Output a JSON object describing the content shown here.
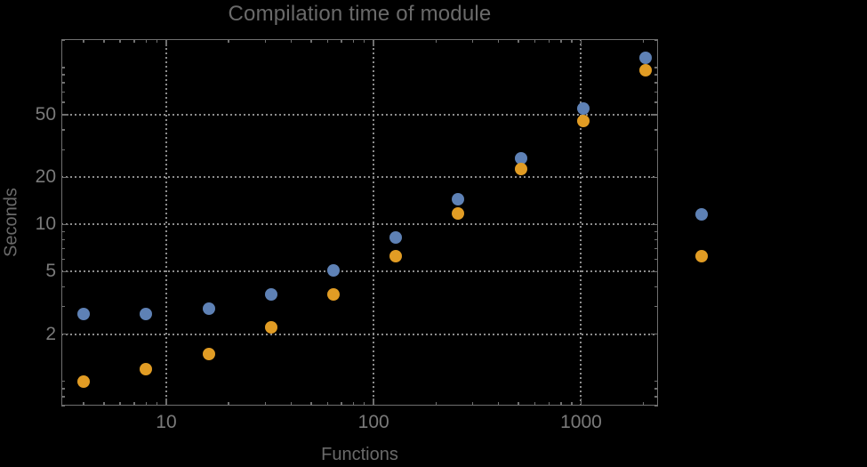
{
  "chart_data": {
    "type": "scatter",
    "title": "Compilation time of module",
    "xlabel": "Functions",
    "ylabel": "Seconds",
    "x_scale": "log",
    "y_scale": "log",
    "xlim": [
      3.12,
      2350
    ],
    "ylim": [
      0.7,
      152
    ],
    "grid": "major gridlines only, dotted gray",
    "x": [
      4,
      8,
      16,
      32,
      64,
      128,
      256,
      512,
      1024,
      2048
    ],
    "series": [
      {
        "name": "series-1",
        "color": "#5E81B5",
        "values": [
          2.7,
          2.7,
          2.9,
          3.6,
          5.1,
          8.3,
          14.5,
          26.5,
          55,
          115
        ]
      },
      {
        "name": "series-2",
        "color": "#E19C24",
        "values": [
          1.0,
          1.2,
          1.5,
          2.2,
          3.6,
          6.3,
          11.7,
          22.5,
          46,
          96
        ]
      }
    ],
    "x_ticks": {
      "major": [
        10,
        100,
        1000
      ],
      "major_labels": [
        "10",
        "100",
        "1000"
      ],
      "minor": [
        4,
        5,
        6,
        7,
        8,
        9,
        20,
        30,
        40,
        50,
        60,
        70,
        80,
        90,
        200,
        300,
        400,
        500,
        600,
        700,
        800,
        900,
        2000
      ]
    },
    "y_ticks": {
      "major": [
        2,
        5,
        10,
        20,
        50
      ],
      "major_labels": [
        "2",
        "5",
        "10",
        "20",
        "50"
      ],
      "minor": [
        0.7,
        0.8,
        0.9,
        1,
        3,
        4,
        6,
        7,
        8,
        9,
        30,
        40,
        60,
        70,
        80,
        90,
        100,
        150
      ]
    },
    "legend": {
      "position": "outside-right",
      "entries": [
        {
          "marker_color": "#5E81B5",
          "label": ""
        },
        {
          "marker_color": "#E19C24",
          "label": ""
        }
      ]
    },
    "colors": {
      "background": "#000000",
      "frame": "#6f6f6f",
      "grid": "#8c8c8c",
      "tick_label": "#7a7a7a",
      "title": "#6a6a6a",
      "axis_label": "#6a6a6a"
    }
  }
}
